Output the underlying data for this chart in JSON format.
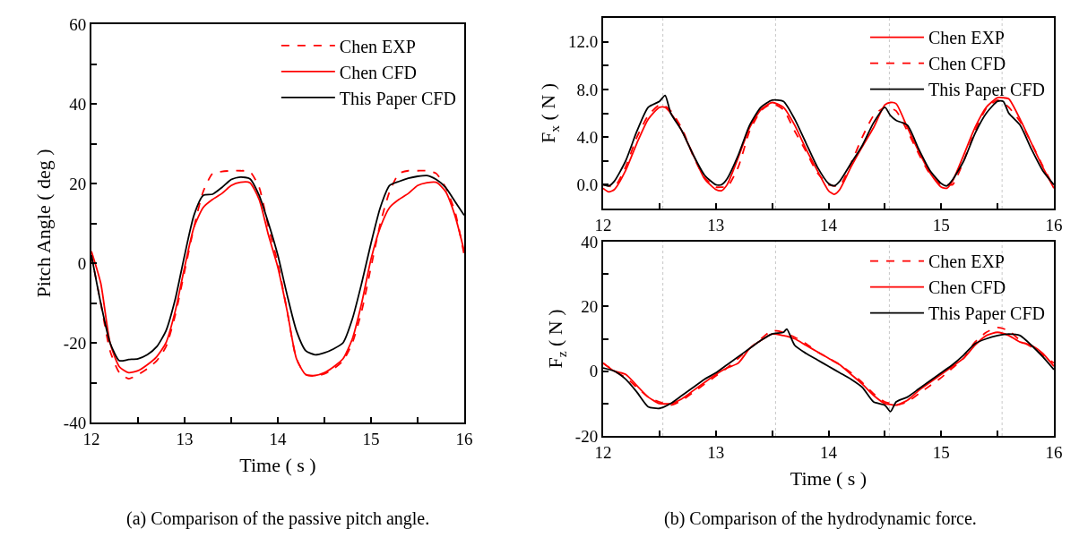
{
  "chart_data": [
    {
      "type": "line",
      "xlabel": "Time ( s )",
      "ylabel": "Pitch Angle ( deg )",
      "xlim": [
        12,
        16
      ],
      "ylim": [
        -40,
        60
      ],
      "xticks": [
        12,
        {
          "value": 12.5,
          "label": null
        },
        13,
        {
          "value": 13.5,
          "label": null
        },
        14,
        {
          "value": 14.5,
          "label": null
        },
        15,
        {
          "value": 15.5,
          "label": null
        },
        16
      ],
      "yticks": [
        -40,
        {
          "value": -30,
          "label": null
        },
        -20,
        {
          "value": -10,
          "label": null
        },
        0,
        {
          "value": 10,
          "label": null
        },
        20,
        {
          "value": 30,
          "label": null
        },
        40,
        {
          "value": 50,
          "label": null
        },
        60
      ],
      "grid": false,
      "legend": "top right",
      "marker": "none",
      "x": [
        12.0,
        12.1,
        12.2,
        12.3,
        12.4,
        12.5,
        12.6,
        12.7,
        12.8,
        12.9,
        13.0,
        13.1,
        13.2,
        13.3,
        13.4,
        13.5,
        13.6,
        13.7,
        13.8,
        13.9,
        14.0,
        14.1,
        14.2,
        14.3,
        14.4,
        14.5,
        14.6,
        14.7,
        14.8,
        14.9,
        15.0,
        15.1,
        15.2,
        15.3,
        15.4,
        15.5,
        15.6,
        15.7,
        15.8,
        15.9,
        16.0
      ],
      "series": [
        {
          "name": "Chen EXP",
          "color": "#ff0000",
          "line_style": "dashed",
          "values": [
            2,
            -10,
            -22,
            -27.5,
            -29,
            -28,
            -26.5,
            -24.5,
            -21,
            -13,
            -2,
            9,
            18,
            22.5,
            23,
            23.2,
            23.2,
            23,
            19,
            9,
            0,
            -12,
            -24,
            -28,
            -28.3,
            -27.8,
            -26.5,
            -24.5,
            -20,
            -12,
            -1,
            10,
            18,
            22.5,
            23.2,
            23.2,
            23.2,
            22.5,
            19,
            13,
            2
          ]
        },
        {
          "name": "Chen CFD",
          "color": "#ff0000",
          "line_style": "solid",
          "values": [
            3,
            -5,
            -20,
            -26,
            -27.5,
            -27,
            -25.5,
            -23.5,
            -20,
            -12,
            -1,
            9,
            14,
            16,
            17.5,
            19.5,
            20.3,
            20.2,
            16,
            7,
            -1,
            -12,
            -24,
            -28,
            -28.2,
            -27.5,
            -26,
            -24,
            -19,
            -10,
            1,
            9,
            14,
            16,
            17.5,
            19.5,
            20.2,
            20.3,
            18,
            12,
            3
          ]
        },
        {
          "name": "This Paper CFD",
          "color": "#000000",
          "line_style": "solid",
          "values": [
            2,
            -10,
            -20,
            -24.5,
            -24.2,
            -24,
            -23,
            -21,
            -17,
            -9,
            2,
            12,
            17,
            17.3,
            19,
            21,
            21.6,
            21.2,
            17,
            10,
            2,
            -8,
            -17,
            -22,
            -23,
            -22.5,
            -21.5,
            -20,
            -14,
            -5,
            5,
            14,
            19.5,
            20.5,
            21.3,
            21.8,
            22,
            21,
            19,
            15.5,
            12
          ]
        }
      ],
      "annotations": [
        "(a) Comparison of the passive pitch angle."
      ]
    },
    {
      "type": "line",
      "ylabel": "F$_{x}$ ( N )",
      "xlim": [
        12,
        16
      ],
      "ylim": [
        -2,
        14
      ],
      "xticks": [
        12,
        {
          "value": 12.5,
          "label": null
        },
        13,
        {
          "value": 13.5,
          "label": null
        },
        14,
        {
          "value": 14.5,
          "label": null
        },
        15,
        {
          "value": 15.5,
          "label": null
        },
        16
      ],
      "yticks": [
        {
          "value": 0,
          "label": "0.0"
        },
        {
          "value": 2,
          "label": null
        },
        {
          "value": 4,
          "label": "4.0"
        },
        {
          "value": 6,
          "label": null
        },
        {
          "value": 8,
          "label": "8.0"
        },
        {
          "value": 10,
          "label": null
        },
        {
          "value": 12,
          "label": "12.0"
        }
      ],
      "grid": false,
      "legend": "top right",
      "marker": "none",
      "ref_lines": [
        {
          "axis": "x",
          "value": 12.53,
          "color": "#c8c8c8",
          "line_style": "dotted"
        },
        {
          "axis": "x",
          "value": 13.53,
          "color": "#c8c8c8",
          "line_style": "dotted"
        },
        {
          "axis": "x",
          "value": 14.54,
          "color": "#c8c8c8",
          "line_style": "dotted"
        },
        {
          "axis": "x",
          "value": 15.54,
          "color": "#c8c8c8",
          "line_style": "dotted"
        }
      ],
      "x": [
        12.0,
        12.05,
        12.1,
        12.2,
        12.3,
        12.4,
        12.5,
        12.55,
        12.6,
        12.7,
        12.8,
        12.9,
        13.0,
        13.05,
        13.1,
        13.2,
        13.3,
        13.4,
        13.5,
        13.6,
        13.7,
        13.8,
        13.9,
        14.0,
        14.05,
        14.1,
        14.2,
        14.3,
        14.4,
        14.5,
        14.55,
        14.6,
        14.7,
        14.8,
        14.9,
        15.0,
        15.05,
        15.1,
        15.2,
        15.3,
        15.4,
        15.5,
        15.55,
        15.6,
        15.7,
        15.8,
        15.9,
        16.0
      ],
      "series": [
        {
          "name": "Chen EXP",
          "color": "#ff0000",
          "line_style": "solid",
          "values": [
            -0.3,
            -0.6,
            -0.4,
            1.2,
            3.5,
            5.5,
            6.5,
            6.5,
            6,
            4.5,
            2.5,
            0.5,
            -0.4,
            -0.5,
            0,
            2.3,
            4.8,
            6.3,
            6.9,
            6.5,
            5,
            3,
            1.2,
            -0.5,
            -0.8,
            -0.4,
            1.5,
            3.2,
            4.8,
            6.7,
            6.9,
            6.8,
            4.8,
            2.8,
            1,
            -0.2,
            -0.3,
            0.3,
            2.5,
            4.8,
            6.5,
            7.3,
            7.3,
            7.2,
            5.5,
            3.5,
            1.5,
            -0.3
          ]
        },
        {
          "name": "Chen CFD",
          "color": "#ff0000",
          "line_style": "dashed",
          "values": [
            0,
            -0.1,
            -0.2,
            1.5,
            4,
            5.8,
            6.7,
            6.6,
            6.2,
            4.7,
            2.4,
            0.6,
            -0.2,
            -0.2,
            -0.2,
            1.5,
            4.5,
            6.2,
            6.8,
            6.3,
            4.5,
            2.8,
            1,
            0,
            -0.1,
            -0.1,
            1.8,
            4,
            5.8,
            6.5,
            6.4,
            6.2,
            4.5,
            2.6,
            0.9,
            0,
            0,
            0,
            2,
            4.5,
            6.4,
            7.1,
            6.9,
            6.5,
            5.3,
            3.5,
            1.6,
            -0.2
          ]
        },
        {
          "name": "This Paper CFD",
          "color": "#000000",
          "line_style": "solid",
          "values": [
            0,
            -0.1,
            0.3,
            2,
            4.5,
            6.5,
            7,
            7.5,
            6,
            4.5,
            2.5,
            0.8,
            0,
            0,
            0.5,
            2.5,
            5,
            6.5,
            7.1,
            7,
            5.5,
            3.5,
            1.5,
            0.1,
            -0.1,
            0.3,
            1.8,
            3.3,
            5.2,
            6.5,
            5.8,
            5.4,
            5,
            3,
            1.2,
            0.1,
            -0.1,
            0.4,
            2,
            4.3,
            6,
            7,
            7,
            6,
            5,
            3,
            1.2,
            0
          ]
        }
      ]
    },
    {
      "type": "line",
      "xlabel": "Time ( s )",
      "ylabel": "F$_{z}$ ( N )",
      "xlim": [
        12,
        16
      ],
      "ylim": [
        -20,
        40
      ],
      "xticks": [
        12,
        {
          "value": 12.5,
          "label": null
        },
        13,
        {
          "value": 13.5,
          "label": null
        },
        14,
        {
          "value": 14.5,
          "label": null
        },
        15,
        {
          "value": 15.5,
          "label": null
        },
        16
      ],
      "yticks": [
        -20,
        {
          "value": -10,
          "label": null
        },
        0,
        {
          "value": 10,
          "label": null
        },
        20,
        {
          "value": 30,
          "label": null
        },
        40
      ],
      "grid": false,
      "legend": "top right",
      "marker": "none",
      "ref_lines": [
        {
          "axis": "x",
          "value": 12.53,
          "color": "#c8c8c8",
          "line_style": "dotted"
        },
        {
          "axis": "x",
          "value": 13.53,
          "color": "#c8c8c8",
          "line_style": "dotted"
        },
        {
          "axis": "x",
          "value": 14.54,
          "color": "#c8c8c8",
          "line_style": "dotted"
        },
        {
          "axis": "x",
          "value": 15.54,
          "color": "#c8c8c8",
          "line_style": "dotted"
        }
      ],
      "x": [
        12.0,
        12.1,
        12.2,
        12.3,
        12.4,
        12.5,
        12.6,
        12.7,
        12.8,
        12.9,
        13.0,
        13.1,
        13.2,
        13.3,
        13.4,
        13.5,
        13.6,
        13.63,
        13.7,
        13.8,
        13.9,
        14.0,
        14.1,
        14.2,
        14.3,
        14.4,
        14.5,
        14.55,
        14.6,
        14.7,
        14.8,
        14.9,
        15.0,
        15.1,
        15.2,
        15.3,
        15.4,
        15.5,
        15.6,
        15.7,
        15.8,
        15.9,
        16.0
      ],
      "series": [
        {
          "name": "Chen EXP",
          "color": "#ff0000",
          "line_style": "dashed",
          "values": [
            2.5,
            0,
            -2,
            -5,
            -8,
            -9.5,
            -10.5,
            -9,
            -6.5,
            -4,
            -1.5,
            1,
            4,
            7,
            10,
            12.5,
            12,
            11.5,
            10.5,
            8.5,
            6,
            4,
            2,
            -0.5,
            -3.5,
            -7,
            -9.5,
            -10,
            -10.5,
            -9.5,
            -7,
            -4.5,
            -2,
            1,
            4,
            9,
            12,
            13.5,
            12.5,
            9.5,
            7.5,
            5,
            2.5
          ]
        },
        {
          "name": "Chen CFD",
          "color": "#ff0000",
          "line_style": "solid",
          "values": [
            2.5,
            0,
            -1,
            -4.5,
            -8,
            -10,
            -10,
            -8.5,
            -6,
            -3.5,
            -1,
            1,
            2.5,
            7,
            9.5,
            11.5,
            11,
            10.8,
            10,
            8,
            6,
            4,
            2,
            -1,
            -4,
            -7.5,
            -10,
            -10.3,
            -10.5,
            -9,
            -6,
            -3.5,
            -1,
            1.5,
            4,
            8,
            11,
            12,
            11,
            9,
            8,
            5.5,
            1.5
          ]
        },
        {
          "name": "This Paper CFD",
          "color": "#000000",
          "line_style": "solid",
          "values": [
            1,
            0,
            -2.5,
            -6.5,
            -11,
            -11.5,
            -10,
            -7.5,
            -5,
            -2.5,
            -0.5,
            2,
            4.5,
            7,
            9.5,
            11.5,
            12,
            13,
            8,
            5.5,
            3.5,
            1.5,
            -0.5,
            -2.5,
            -5,
            -9.5,
            -10.5,
            -12.5,
            -9.5,
            -8,
            -5.5,
            -3,
            -0.5,
            2,
            5,
            8.5,
            10,
            11,
            11.5,
            11,
            8,
            4.5,
            0.5
          ]
        }
      ],
      "annotations": [
        "(b) Comparison of the hydrodynamic force."
      ]
    }
  ]
}
